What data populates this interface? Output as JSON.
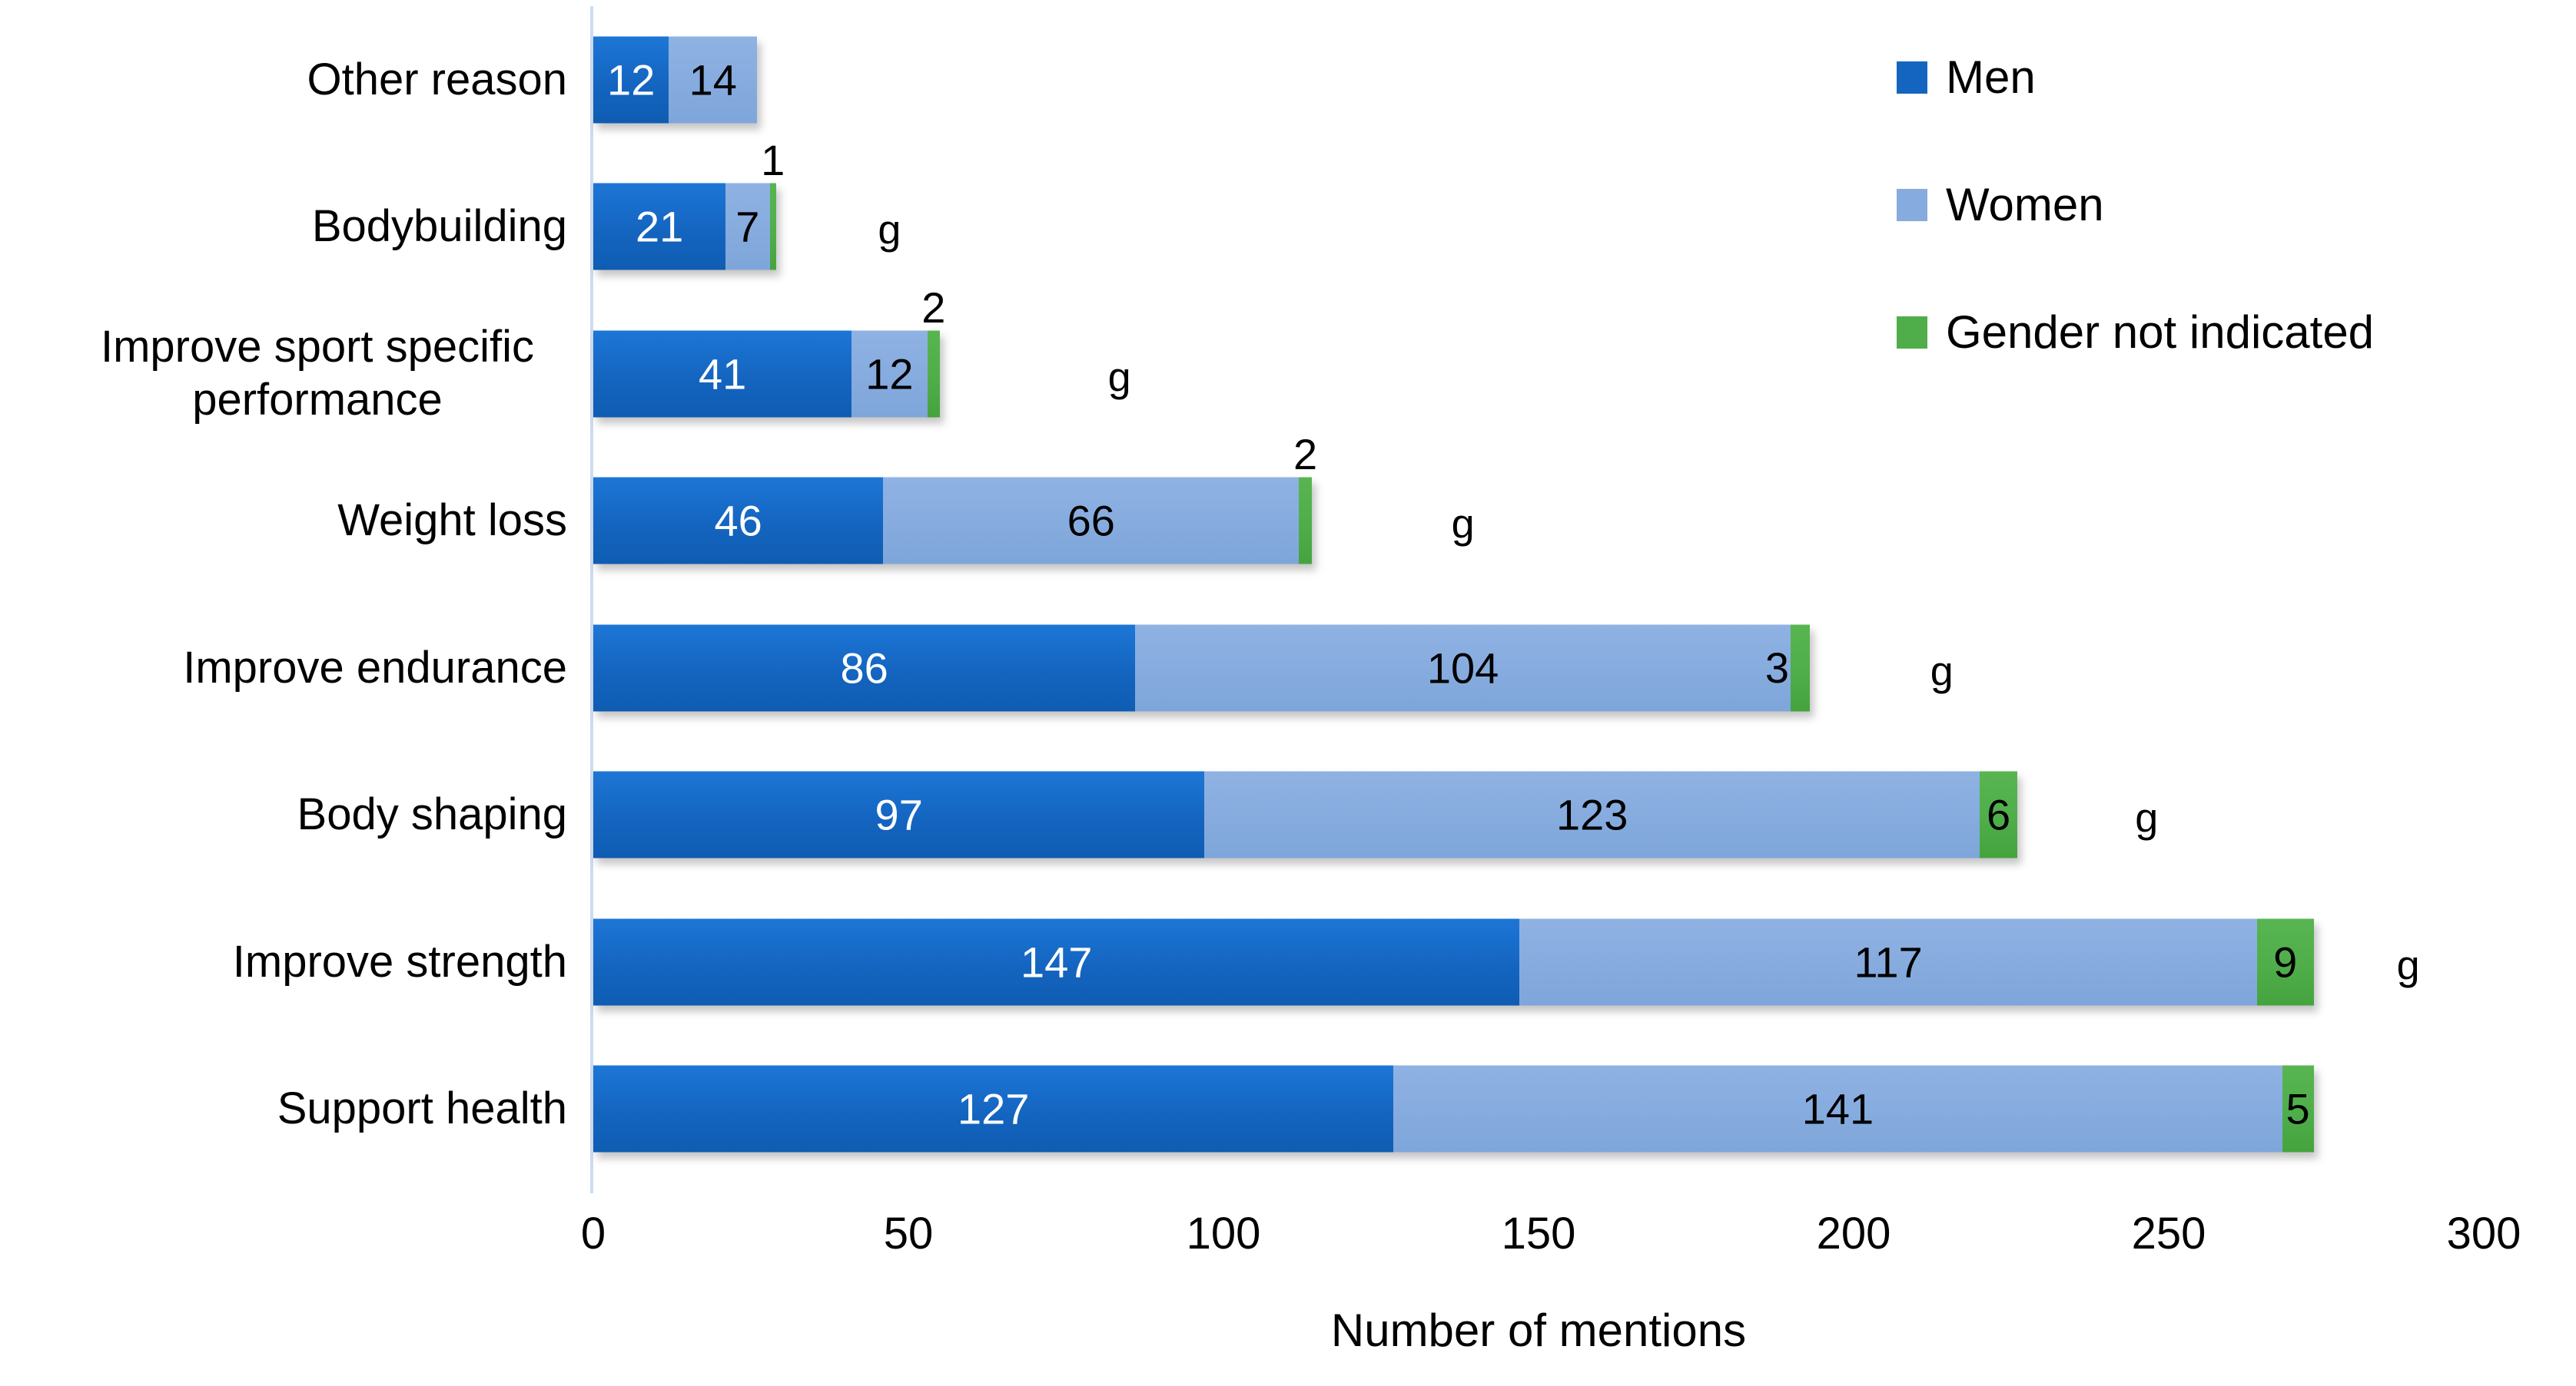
{
  "chart_data": {
    "type": "bar",
    "orientation": "horizontal",
    "stacked": true,
    "title": "",
    "xlabel": "Number of mentions",
    "ylabel": "",
    "xlim": [
      0,
      300
    ],
    "xticks": [
      0,
      50,
      100,
      150,
      200,
      250,
      300
    ],
    "grid": false,
    "legend_position": "top-right",
    "categories": [
      "Other reason",
      "Bodybuilding",
      "Improve sport specific performance",
      "Weight loss",
      "Improve endurance",
      "Body shaping",
      "Improve strength",
      "Support health"
    ],
    "series": [
      {
        "name": "Men",
        "color": "#1465c0",
        "values": [
          12,
          21,
          41,
          46,
          86,
          97,
          147,
          127
        ]
      },
      {
        "name": "Women",
        "color": "#86abde",
        "values": [
          14,
          7,
          12,
          66,
          104,
          123,
          117,
          141
        ]
      },
      {
        "name": "Gender not indicated",
        "color": "#4fae4a",
        "values": [
          0,
          1,
          2,
          2,
          3,
          6,
          9,
          5
        ]
      }
    ],
    "annotation_letter": "g",
    "g_annotation_rows": [
      "Bodybuilding",
      "Improve sport specific performance",
      "Weight loss",
      "Improve endurance",
      "Body shaping",
      "Improve strength"
    ]
  },
  "colors": {
    "men": "#1465c0",
    "women": "#86abde",
    "gender_not_indicated": "#4fae4a",
    "axis_line": "#ccdcf0",
    "bar_label_on_men": "#ffffff",
    "bar_label_on_women": "#000000"
  },
  "rows": [
    {
      "label": "Other reason",
      "men": 12,
      "women": 14,
      "gender": null,
      "gender_label_pos": null,
      "g_offset_units": null
    },
    {
      "label": "Bodybuilding",
      "men": 21,
      "women": 7,
      "gender": 1,
      "gender_label_pos": "above",
      "g_offset_units": 47
    },
    {
      "label": "Improve sport specific performance",
      "men": 41,
      "women": 12,
      "gender": 2,
      "gender_label_pos": "above",
      "g_offset_units": 83.5
    },
    {
      "label": "Weight loss",
      "men": 46,
      "women": 66,
      "gender": 2,
      "gender_label_pos": "above",
      "g_offset_units": 138
    },
    {
      "label": "Improve endurance",
      "men": 86,
      "women": 104,
      "gender": 3,
      "gender_label_pos": "beside",
      "g_offset_units": 214
    },
    {
      "label": "Body shaping",
      "men": 97,
      "women": 123,
      "gender": 6,
      "gender_label_pos": "inside",
      "g_offset_units": 246.5
    },
    {
      "label": "Improve strength",
      "men": 147,
      "women": 117,
      "gender": 9,
      "gender_label_pos": "inside",
      "g_offset_units": 288
    },
    {
      "label": "Support health",
      "men": 127,
      "women": 141,
      "gender": 5,
      "gender_label_pos": "inside",
      "g_offset_units": null
    }
  ],
  "legend": {
    "items": [
      {
        "label": "Men"
      },
      {
        "label": "Women"
      },
      {
        "label": "Gender not indicated"
      }
    ]
  },
  "xaxis": {
    "ticks": [
      "0",
      "50",
      "100",
      "150",
      "200",
      "250",
      "300"
    ],
    "max": 300,
    "label": "Number of mentions"
  }
}
